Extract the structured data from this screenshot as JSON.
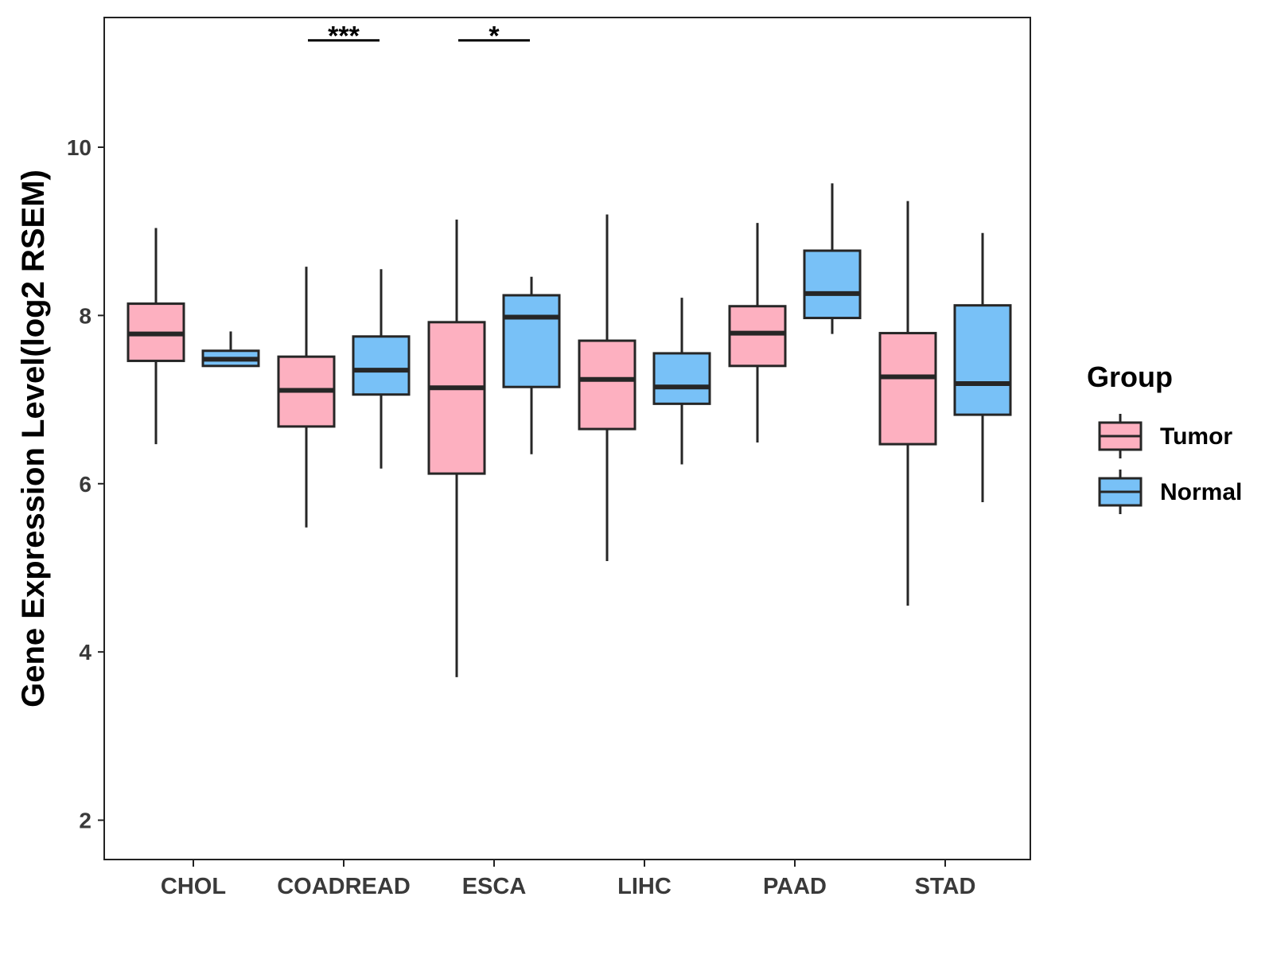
{
  "chart_data": {
    "type": "boxplot",
    "title": "",
    "xlabel": "",
    "ylabel": "Gene Expression Level(log2 RSEM)",
    "ylim": [
      1.75,
      11.75
    ],
    "yticks": [
      2,
      4,
      6,
      8,
      10
    ],
    "grid": false,
    "categories": [
      "CHOL",
      "COADREAD",
      "ESCA",
      "LIHC",
      "PAAD",
      "STAD"
    ],
    "legend": {
      "title": "Group",
      "position": "right",
      "entries": [
        "Tumor",
        "Normal"
      ]
    },
    "series": [
      {
        "name": "Tumor",
        "color": "#FDB0C0",
        "boxes": [
          {
            "category": "CHOL",
            "min": 6.47,
            "q1": 7.46,
            "median": 7.78,
            "q3": 8.14,
            "max": 9.04
          },
          {
            "category": "COADREAD",
            "min": 5.48,
            "q1": 6.68,
            "median": 7.11,
            "q3": 7.51,
            "max": 8.58
          },
          {
            "category": "ESCA",
            "min": 3.7,
            "q1": 6.12,
            "median": 7.14,
            "q3": 7.92,
            "max": 9.14
          },
          {
            "category": "LIHC",
            "min": 5.08,
            "q1": 6.65,
            "median": 7.24,
            "q3": 7.7,
            "max": 9.2
          },
          {
            "category": "PAAD",
            "min": 6.49,
            "q1": 7.4,
            "median": 7.79,
            "q3": 8.11,
            "max": 9.1
          },
          {
            "category": "STAD",
            "min": 4.55,
            "q1": 6.47,
            "median": 7.27,
            "q3": 7.79,
            "max": 9.36
          }
        ]
      },
      {
        "name": "Normal",
        "color": "#78C1F7",
        "boxes": [
          {
            "category": "CHOL",
            "min": 7.39,
            "q1": 7.4,
            "median": 7.48,
            "q3": 7.58,
            "max": 7.81
          },
          {
            "category": "COADREAD",
            "min": 6.18,
            "q1": 7.06,
            "median": 7.35,
            "q3": 7.75,
            "max": 8.55
          },
          {
            "category": "ESCA",
            "min": 6.35,
            "q1": 7.15,
            "median": 7.98,
            "q3": 8.24,
            "max": 8.46
          },
          {
            "category": "LIHC",
            "min": 6.23,
            "q1": 6.95,
            "median": 7.15,
            "q3": 7.55,
            "max": 8.21
          },
          {
            "category": "PAAD",
            "min": 7.78,
            "q1": 7.97,
            "median": 8.26,
            "q3": 8.77,
            "max": 9.57
          },
          {
            "category": "STAD",
            "min": 5.78,
            "q1": 6.82,
            "median": 7.19,
            "q3": 8.12,
            "max": 8.98
          }
        ]
      }
    ],
    "annotations": [
      {
        "category": "COADREAD",
        "label": "***",
        "y": 11.27
      },
      {
        "category": "ESCA",
        "label": "*",
        "y": 11.27
      }
    ]
  }
}
